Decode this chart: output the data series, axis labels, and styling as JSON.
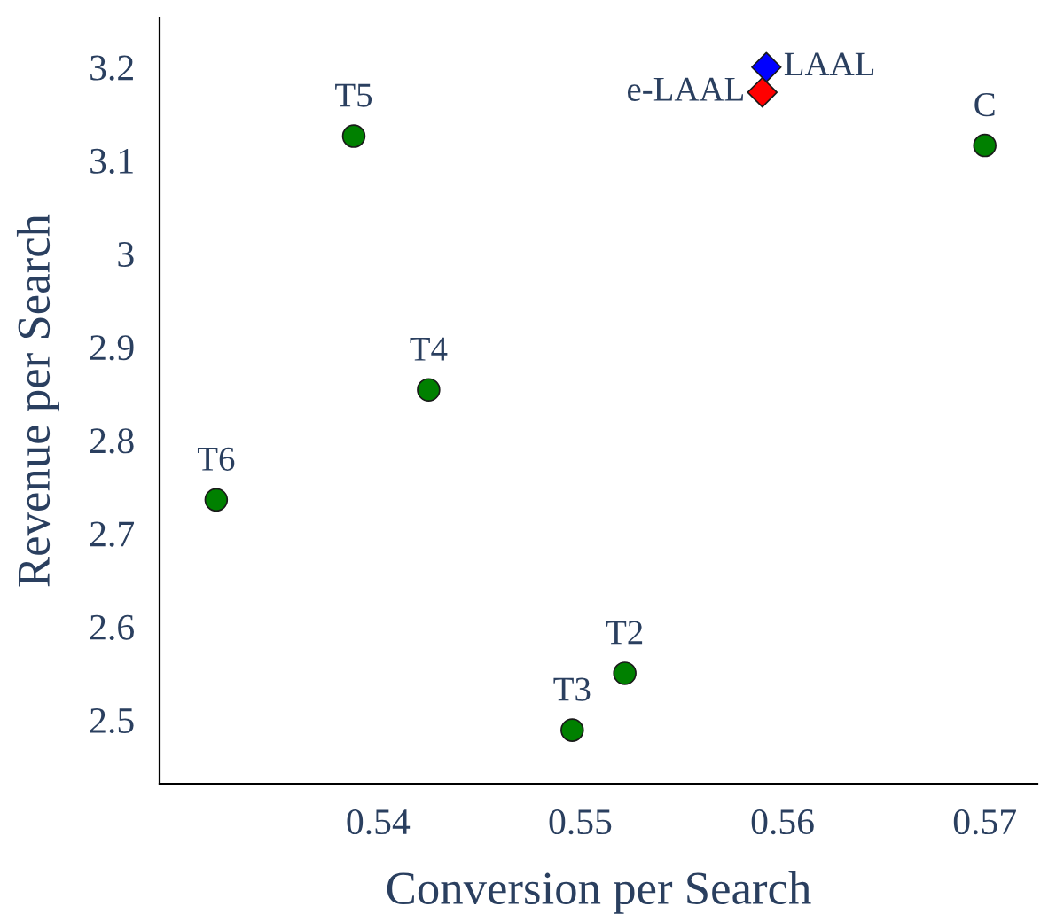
{
  "chart_data": {
    "type": "scatter",
    "xlabel": "Conversion per Search",
    "ylabel": "Revenue per Search",
    "xlim": [
      0.5292,
      0.5726
    ],
    "xticks": [
      0.54,
      0.55,
      0.56,
      0.57
    ],
    "ylim": [
      2.4316,
      3.253
    ],
    "yticks": [
      2.5,
      2.6,
      2.7,
      2.8,
      2.9,
      3,
      3.1,
      3.2
    ],
    "grid": false,
    "legend": false,
    "series": [
      {
        "color": "#008000",
        "marker": "circle",
        "x": [
          0.5388,
          0.57,
          0.5425,
          0.532,
          0.5522,
          0.5496
        ],
        "values": [
          3.126,
          3.116,
          2.854,
          2.736,
          2.55,
          2.489
        ]
      },
      {
        "color": "#0000ff",
        "marker": "diamond",
        "x": [
          0.5592
        ],
        "values": [
          3.2
        ]
      },
      {
        "color": "#ff0000",
        "marker": "diamond",
        "x": [
          0.559
        ],
        "values": [
          3.173
        ]
      }
    ],
    "annotations": [
      {
        "text": "T5",
        "x": 0.5388,
        "y": 3.126
      },
      {
        "text": "C",
        "x": 0.57,
        "y": 3.116
      },
      {
        "text": "T4",
        "x": 0.5425,
        "y": 2.854
      },
      {
        "text": "T6",
        "x": 0.532,
        "y": 2.736
      },
      {
        "text": "T2",
        "x": 0.5522,
        "y": 2.55
      },
      {
        "text": "T3",
        "x": 0.5496,
        "y": 2.489
      },
      {
        "text": "LAAL",
        "x": 0.5592,
        "y": 3.2
      },
      {
        "text": "e-LAAL",
        "x": 0.559,
        "y": 3.173
      }
    ]
  }
}
